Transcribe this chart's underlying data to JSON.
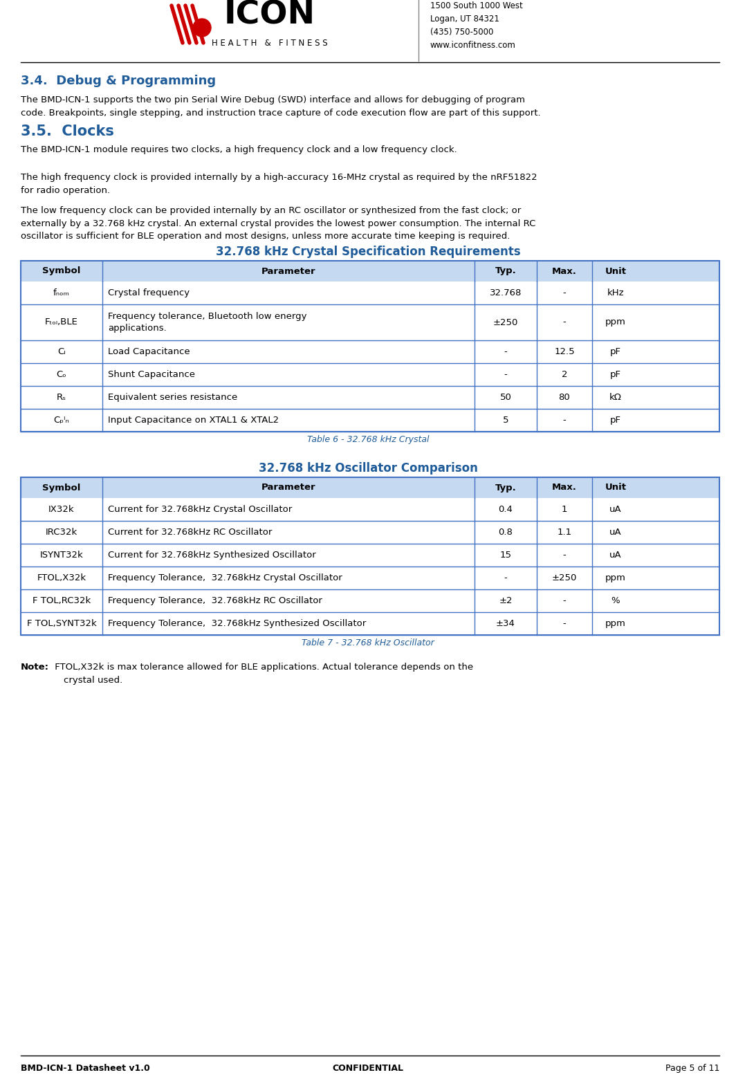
{
  "page_bg": "#ffffff",
  "header_address": "1500 South 1000 West\nLogan, UT 84321\n(435) 750-5000\nwww.iconfitness.com",
  "section_34_color": "#1F5C99",
  "section_34_body": "The BMD-ICN-1 supports the two pin Serial Wire Debug (SWD) interface and allows for debugging of program\ncode. Breakpoints, single stepping, and instruction trace capture of code execution flow are part of this support.",
  "section_35_color": "#1F5C99",
  "section_35_body1": "The BMD-ICN-1 module requires two clocks, a high frequency clock and a low frequency clock.",
  "section_35_body2": "The high frequency clock is provided internally by a high-accuracy 16-MHz crystal as required by the nRF51822\nfor radio operation.",
  "section_35_body3": "The low frequency clock can be provided internally by an RC oscillator or synthesized from the fast clock; or\nexternally by a 32.768 kHz crystal. An external crystal provides the lowest power consumption. The internal RC\noscillator is sufficient for BLE operation and most designs, unless more accurate time keeping is required.",
  "table1_title": "32.768 kHz Crystal Specification Requirements",
  "table1_title_color": "#1F5C99",
  "table1_header": [
    "Symbol",
    "Parameter",
    "Typ.",
    "Max.",
    "Unit"
  ],
  "table1_header_bg": "#C5D9F1",
  "table1_rows": [
    [
      "fₙₒₘ",
      "Crystal frequency",
      "32.768",
      "-",
      "kHz"
    ],
    [
      "Fₜₒₗ,BLE",
      "Frequency tolerance, Bluetooth low energy\napplications.",
      "±250",
      "-",
      "ppm"
    ],
    [
      "Cₗ",
      "Load Capacitance",
      "-",
      "12.5",
      "pF"
    ],
    [
      "Cₒ",
      "Shunt Capacitance",
      "-",
      "2",
      "pF"
    ],
    [
      "Rₛ",
      "Equivalent series resistance",
      "50",
      "80",
      "kΩ"
    ],
    [
      "Cₚᴵₙ",
      "Input Capacitance on XTAL1 & XTAL2",
      "5",
      "-",
      "pF"
    ]
  ],
  "table1_caption": "Table 6 - 32.768 kHz Crystal",
  "table1_caption_color": "#1F5C99",
  "table2_title": "32.768 kHz Oscillator Comparison",
  "table2_title_color": "#1F5C99",
  "table2_header": [
    "Symbol",
    "Parameter",
    "Typ.",
    "Max.",
    "Unit"
  ],
  "table2_header_bg": "#C5D9F1",
  "table2_rows": [
    [
      "IX32k",
      "Current for 32.768kHz Crystal Oscillator",
      "0.4",
      "1",
      "uA"
    ],
    [
      "IRC32k",
      "Current for 32.768kHz RC Oscillator",
      "0.8",
      "1.1",
      "uA"
    ],
    [
      "ISYNT32k",
      "Current for 32.768kHz Synthesized Oscillator",
      "15",
      "-",
      "uA"
    ],
    [
      "FTOL,X32k",
      "Frequency Tolerance,  32.768kHz Crystal Oscillator",
      "-",
      "±250",
      "ppm"
    ],
    [
      "F TOL,RC32k",
      "Frequency Tolerance,  32.768kHz RC Oscillator",
      "±2",
      "-",
      "%"
    ],
    [
      "F TOL,SYNT32k",
      "Frequency Tolerance,  32.768kHz Synthesized Oscillator",
      "±34",
      "-",
      "ppm"
    ]
  ],
  "table2_caption": "Table 7 - 32.768 kHz Oscillator",
  "table2_caption_color": "#1F5C99",
  "note_bold": "Note:",
  "note_text": " FTOL,X32k is max tolerance allowed for BLE applications. Actual tolerance depends on the\n    crystal used.",
  "footer_left": "BMD-ICN-1 Datasheet v1.0",
  "footer_center": "CONFIDENTIAL",
  "footer_right": "Page 5 of 11",
  "table_border_color": "#4472C4",
  "text_color": "#000000",
  "body_font_size": 9.5,
  "table_font_size": 9.5
}
